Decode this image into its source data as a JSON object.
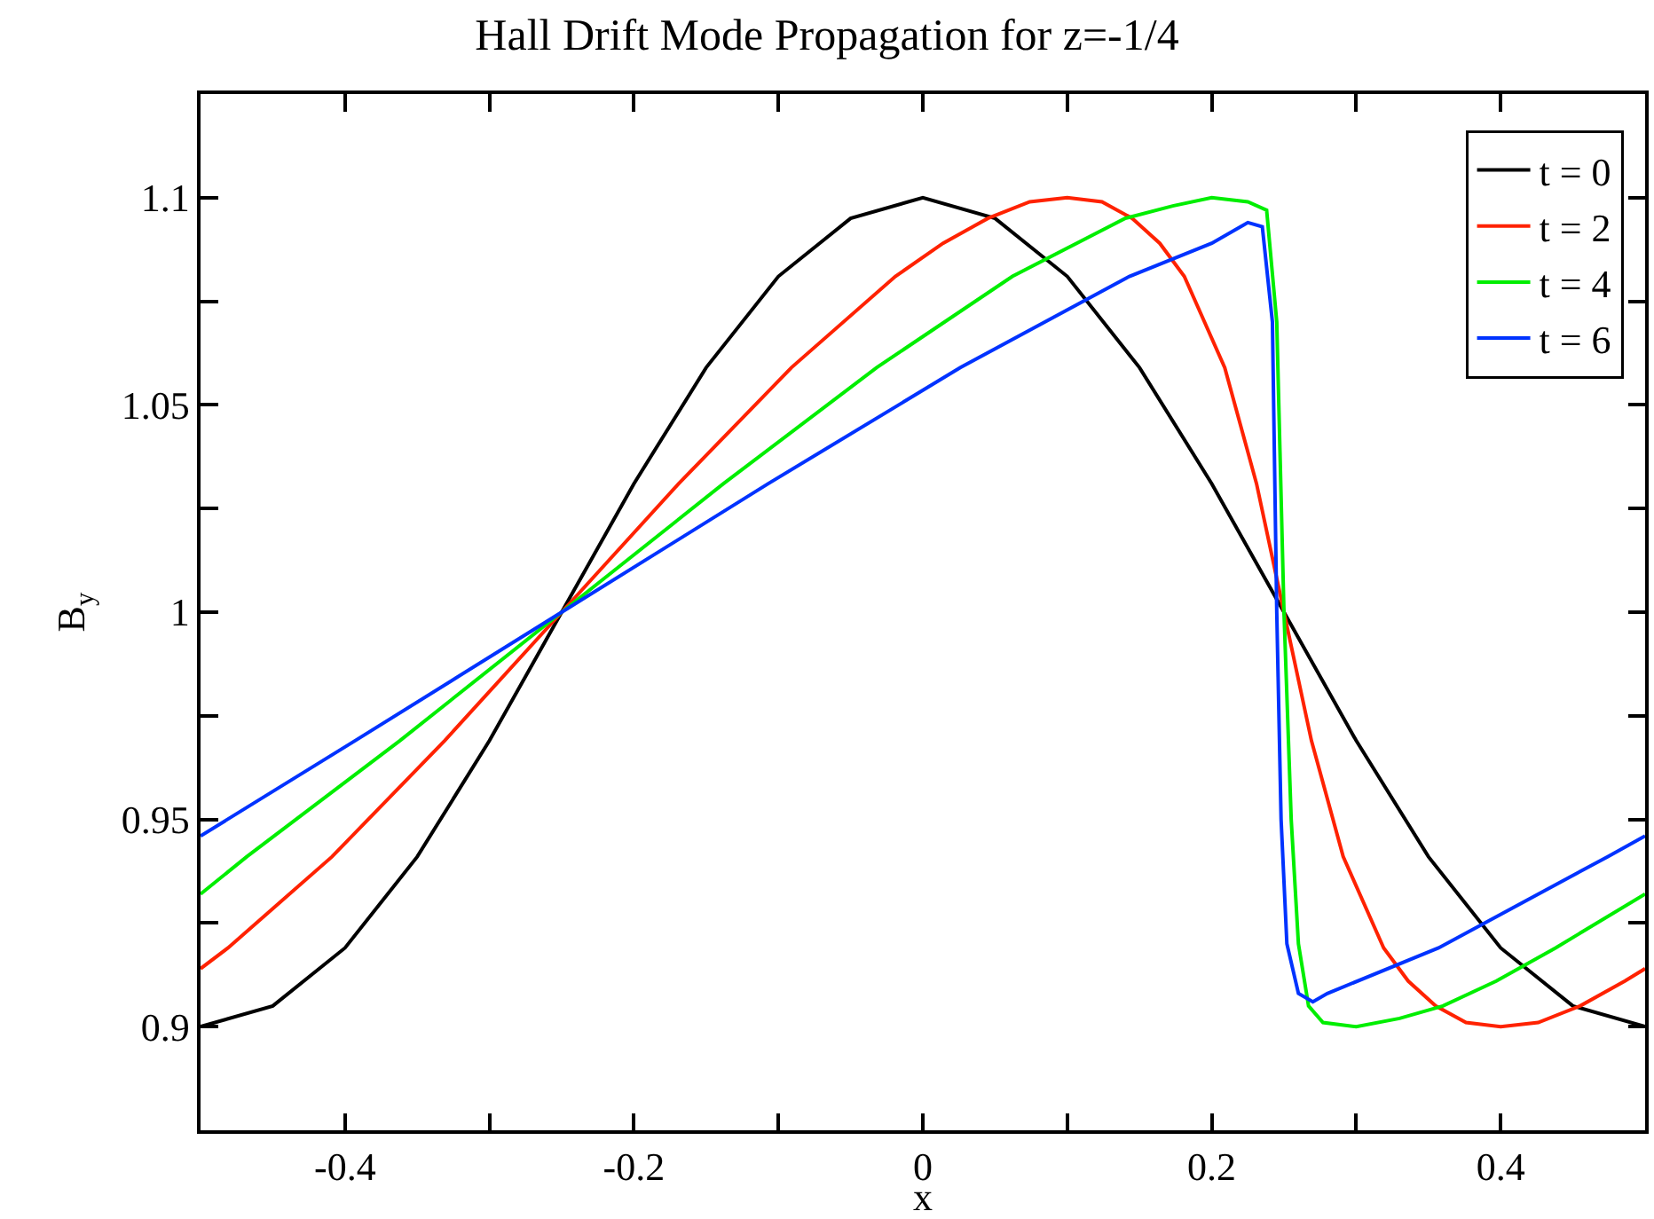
{
  "chart_data": {
    "type": "line",
    "title": "Hall Drift Mode Propagation for z=-1/4",
    "xlabel": "x",
    "ylabel": "B$_{y}$",
    "xlim": [
      -0.5,
      0.5
    ],
    "xticks": [
      -0.4,
      {
        "value": -0.3,
        "label": null
      },
      -0.2,
      {
        "value": -0.1,
        "label": null
      },
      0,
      {
        "value": 0.1,
        "label": null
      },
      0.2,
      {
        "value": 0.3,
        "label": null
      },
      0.4
    ],
    "ylim": [
      0.875,
      1.125
    ],
    "yticks": [
      0.9,
      {
        "value": 0.925,
        "label": null
      },
      0.95,
      {
        "value": 0.975,
        "label": null
      },
      1,
      {
        "value": 1.025,
        "label": null
      },
      1.05,
      {
        "value": 1.075,
        "label": null
      },
      1.1
    ],
    "grid": false,
    "legend": "top right",
    "marker": "none",
    "line_style": "solid",
    "series": [
      {
        "name": "t = 0",
        "color": "#000000",
        "x": [
          -0.5,
          -0.45,
          -0.4,
          -0.35,
          -0.3,
          -0.25,
          -0.2,
          -0.15,
          -0.1,
          -0.05,
          0,
          0.05,
          0.1,
          0.15,
          0.2,
          0.25,
          0.3,
          0.35,
          0.4,
          0.45,
          0.5
        ],
        "values": [
          0.9,
          0.905,
          0.919,
          0.941,
          0.969,
          1.0,
          1.031,
          1.059,
          1.081,
          1.095,
          1.1,
          1.095,
          1.081,
          1.059,
          1.031,
          1.0,
          0.969,
          0.941,
          0.919,
          0.905,
          0.9
        ]
      },
      {
        "name": "t = 2",
        "color": "#ff2200",
        "x": [
          -0.5,
          -0.481,
          -0.409,
          -0.331,
          -0.25,
          -0.169,
          -0.091,
          -0.019,
          0.014,
          0.045,
          0.074,
          0.1,
          0.124,
          0.145,
          0.164,
          0.181,
          0.209,
          0.231,
          0.25,
          0.269,
          0.291,
          0.319,
          0.336,
          0.355,
          0.376,
          0.4,
          0.426,
          0.455,
          0.486,
          0.5
        ],
        "values": [
          0.914,
          0.919,
          0.941,
          0.969,
          1.0,
          1.031,
          1.059,
          1.081,
          1.089,
          1.095,
          1.099,
          1.1,
          1.099,
          1.095,
          1.089,
          1.081,
          1.059,
          1.031,
          1.0,
          0.969,
          0.941,
          0.919,
          0.911,
          0.905,
          0.901,
          0.9,
          0.901,
          0.905,
          0.911,
          0.914
        ]
      },
      {
        "name": "t = 4",
        "color": "#00ee00",
        "x": [
          -0.5,
          -0.468,
          -0.362,
          -0.25,
          -0.138,
          -0.032,
          0.062,
          0.14,
          0.173,
          0.2,
          0.225,
          0.238,
          0.245,
          0.25,
          0.255,
          0.26,
          0.267,
          0.277,
          0.3,
          0.33,
          0.36,
          0.397,
          0.438,
          0.5
        ],
        "values": [
          0.932,
          0.941,
          0.969,
          1.0,
          1.031,
          1.059,
          1.081,
          1.095,
          1.098,
          1.1,
          1.099,
          1.097,
          1.07,
          1.0,
          0.95,
          0.92,
          0.905,
          0.901,
          0.9,
          0.902,
          0.905,
          0.911,
          0.919,
          0.932
        ]
      },
      {
        "name": "t = 6",
        "color": "#0033ff",
        "x": [
          -0.5,
          -0.393,
          -0.25,
          -0.107,
          0.026,
          0.143,
          0.2,
          0.225,
          0.235,
          0.242,
          0.245,
          0.248,
          0.252,
          0.26,
          0.27,
          0.28,
          0.357,
          0.474,
          0.5
        ],
        "values": [
          0.946,
          0.969,
          1.0,
          1.031,
          1.059,
          1.081,
          1.089,
          1.094,
          1.093,
          1.07,
          1.0,
          0.95,
          0.92,
          0.908,
          0.906,
          0.908,
          0.919,
          0.941,
          0.946
        ]
      }
    ]
  }
}
